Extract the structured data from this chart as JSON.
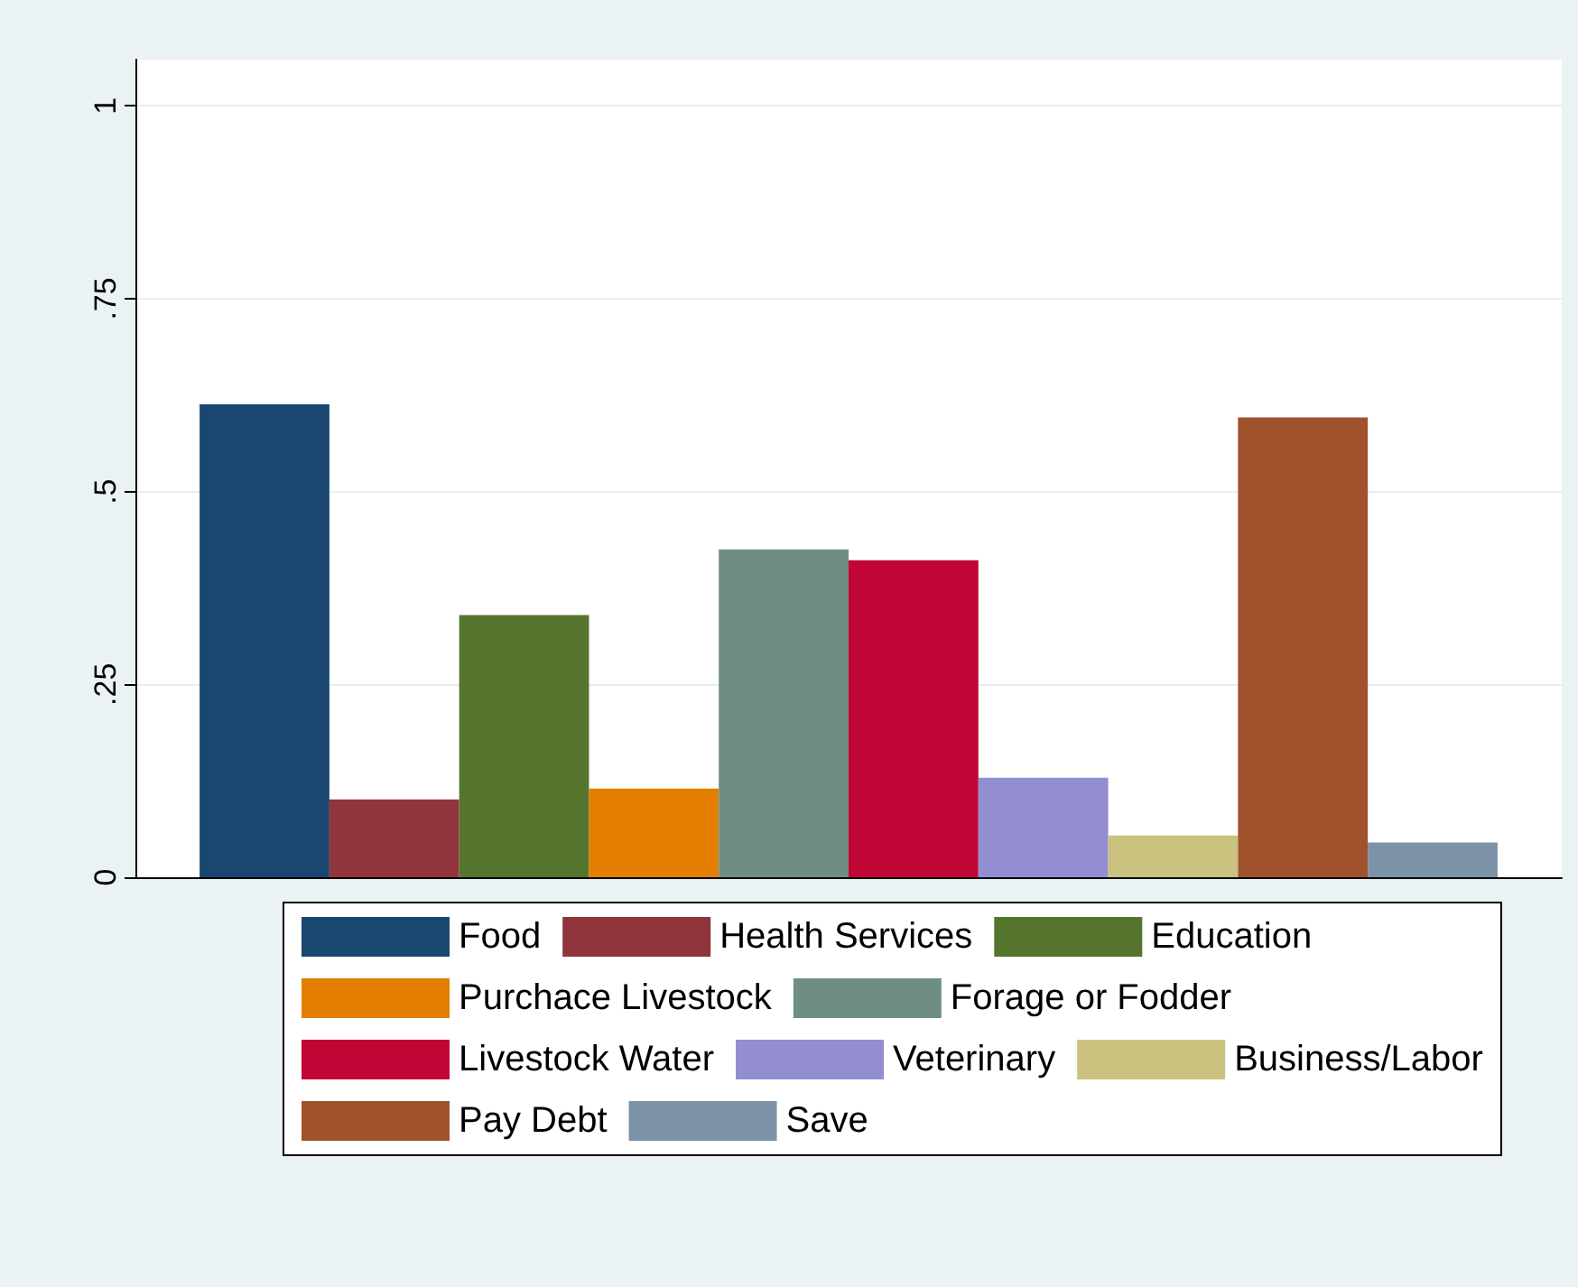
{
  "chart_data": {
    "type": "bar",
    "categories": [
      null
    ],
    "series": [
      {
        "name": "Food",
        "color": "#1a476f",
        "values": [
          0.613
        ]
      },
      {
        "name": "Health Services",
        "color": "#90353b",
        "values": [
          0.101
        ]
      },
      {
        "name": "Education",
        "color": "#55752f",
        "values": [
          0.34
        ]
      },
      {
        "name": "Purchace Livestock",
        "color": "#e37e00",
        "values": [
          0.115
        ]
      },
      {
        "name": "Forage or Fodder",
        "color": "#6e8e84",
        "values": [
          0.425
        ]
      },
      {
        "name": "Livestock Water",
        "color": "#c10534",
        "values": [
          0.411
        ]
      },
      {
        "name": "Veterinary",
        "color": "#938dd2",
        "values": [
          0.129
        ]
      },
      {
        "name": "Business/Labor",
        "color": "#cac27e",
        "values": [
          0.054
        ]
      },
      {
        "name": "Pay Debt",
        "color": "#a0522d",
        "values": [
          0.596
        ]
      },
      {
        "name": "Save",
        "color": "#7b92a8",
        "values": [
          0.045
        ]
      }
    ],
    "ylim": [
      0,
      1.06
    ],
    "yticks": [
      {
        "value": 0,
        "label": "0"
      },
      {
        "value": 0.25,
        "label": ".25"
      },
      {
        "value": 0.5,
        "label": ".5"
      },
      {
        "value": 0.75,
        "label": ".75"
      },
      {
        "value": 1,
        "label": "1"
      }
    ],
    "grid": "y",
    "legend": "bottom"
  }
}
